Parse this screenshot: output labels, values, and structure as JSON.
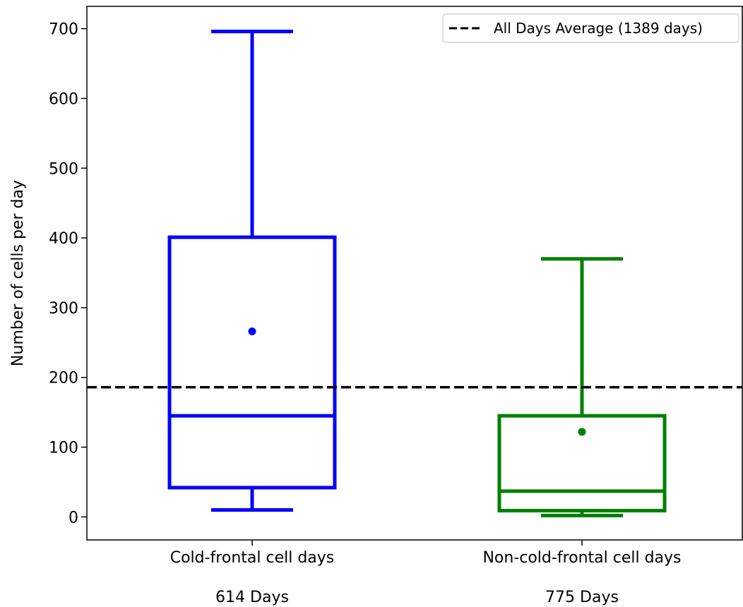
{
  "chart_data": {
    "type": "box",
    "title": "",
    "xlabel": "",
    "ylabel": "Number of cells per day",
    "ylim": [
      -33,
      732
    ],
    "yticks": [
      0,
      100,
      200,
      300,
      400,
      500,
      600,
      700
    ],
    "grid": false,
    "legend": {
      "placement": "top-right",
      "entries": [
        {
          "label": "All Days Average (1389 days)",
          "style": "dashed",
          "color": "#000000"
        }
      ]
    },
    "reference_line": {
      "value": 186,
      "label": "All Days Average (1389 days)",
      "color": "#000000",
      "style": "dashed"
    },
    "categories": [
      "Cold-frontal cell days",
      "Non-cold-frontal cell days"
    ],
    "counts": [
      "614 Days",
      "775 Days"
    ],
    "boxes": [
      {
        "category": "Cold-frontal cell days",
        "whisker_low": 10,
        "q1": 42,
        "median": 145,
        "q3": 401,
        "whisker_high": 696,
        "mean": 266,
        "color": "#0000ff"
      },
      {
        "category": "Non-cold-frontal cell days",
        "whisker_low": 2,
        "q1": 9,
        "median": 37,
        "q3": 145,
        "whisker_high": 370,
        "mean": 122,
        "color": "#008000"
      }
    ]
  }
}
